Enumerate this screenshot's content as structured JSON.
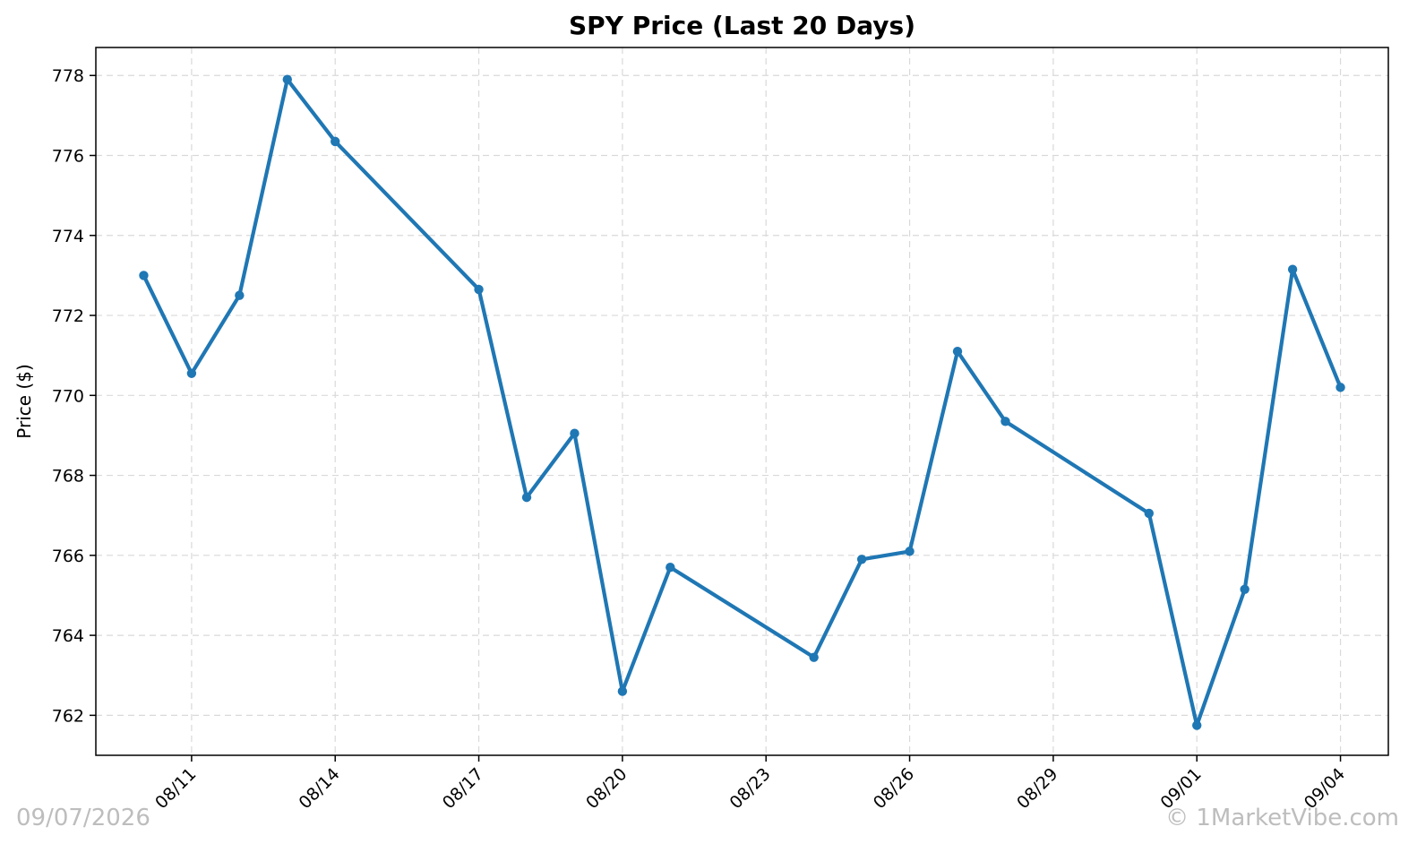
{
  "chart_data": {
    "type": "line",
    "title": "SPY Price (Last 20 Days)",
    "xlabel": "",
    "ylabel": "Price ($)",
    "x": [
      "08/10",
      "08/11",
      "08/12",
      "08/13",
      "08/14",
      "08/17",
      "08/18",
      "08/19",
      "08/20",
      "08/21",
      "08/24",
      "08/25",
      "08/26",
      "08/27",
      "08/28",
      "08/31",
      "09/01",
      "09/02",
      "09/03",
      "09/04"
    ],
    "series": [
      {
        "values": [
          773.0,
          770.55,
          772.5,
          777.9,
          776.35,
          772.65,
          767.45,
          769.05,
          762.6,
          765.7,
          763.45,
          765.9,
          766.1,
          771.1,
          769.35,
          767.05,
          761.75,
          765.15,
          773.15,
          770.2
        ],
        "color": "#1f77b4"
      }
    ],
    "xticks": [
      "08/11",
      "08/14",
      "08/17",
      "08/20",
      "08/23",
      "08/26",
      "08/29",
      "09/01",
      "09/04"
    ],
    "yticks": [
      762,
      764,
      766,
      768,
      770,
      772,
      774,
      776,
      778
    ],
    "xlim": [
      "08/09",
      "09/05"
    ],
    "ylim": [
      761.0,
      778.7
    ],
    "grid": true
  },
  "footer": {
    "date": "09/07/2026",
    "brand": "© 1MarketVibe.com"
  }
}
